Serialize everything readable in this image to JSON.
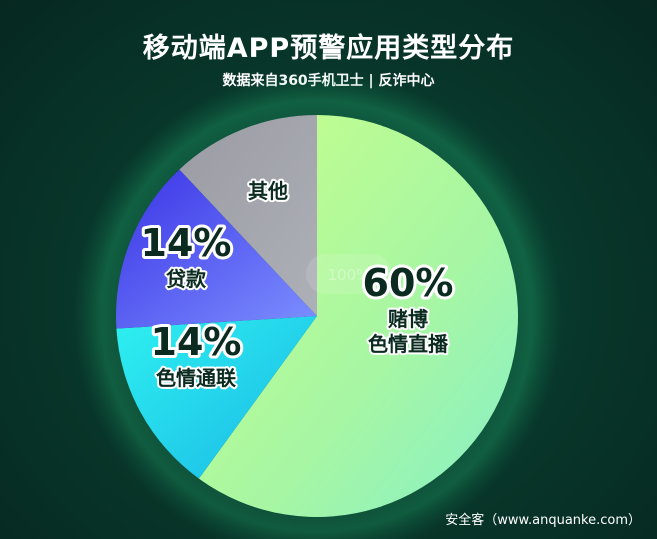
{
  "chart_data": {
    "type": "pie",
    "title": "移动端APP预警应用类型分布",
    "subtitle": "数据来自360手机卫士 | 反诈中心",
    "center_label": "100%",
    "slices": [
      {
        "label_lines": [
          "赌博",
          "色情直播"
        ],
        "value": 60,
        "value_label": "60%",
        "color": "#b0f59a"
      },
      {
        "label_lines": [
          "色情通联"
        ],
        "value": 14,
        "value_label": "14%",
        "color": "#22d8ef"
      },
      {
        "label_lines": [
          "贷款"
        ],
        "value": 14,
        "value_label": "14%",
        "color": "#5b5cf0"
      },
      {
        "label_lines": [
          "其他"
        ],
        "value": 12,
        "value_label": "",
        "color": "#a0a2ab"
      }
    ]
  },
  "footer": "安全客（www.anquanke.com）"
}
